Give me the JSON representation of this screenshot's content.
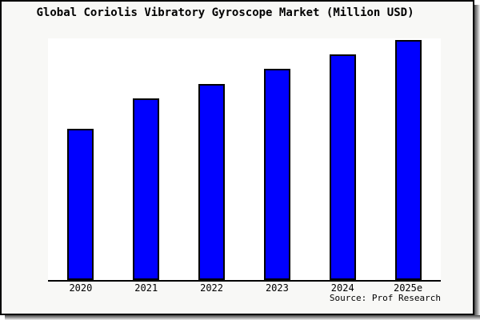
{
  "window": {
    "panel_bg": "#f8f8f6",
    "plot_bg": "#ffffff",
    "frame_border": "#000000",
    "shadow_dark": "#4c4c4c",
    "shadow_light": "#f2f2f2"
  },
  "chart_data": {
    "type": "bar",
    "title": "Global Coriolis Vibratory Gyroscope Market (Million USD)",
    "categories": [
      "2020",
      "2021",
      "2022",
      "2023",
      "2024",
      "2025e"
    ],
    "values": [
      189,
      227,
      245,
      264,
      282,
      300
    ],
    "units": "relative height (y-axis unlabeled in chart)",
    "ylim": [
      0,
      302
    ],
    "grid": false,
    "legend": false,
    "y_axis_labels_visible": false,
    "bar_color": "#0000ff",
    "bar_border_color": "#000000"
  },
  "source": {
    "text": "Source: Prof Research"
  }
}
